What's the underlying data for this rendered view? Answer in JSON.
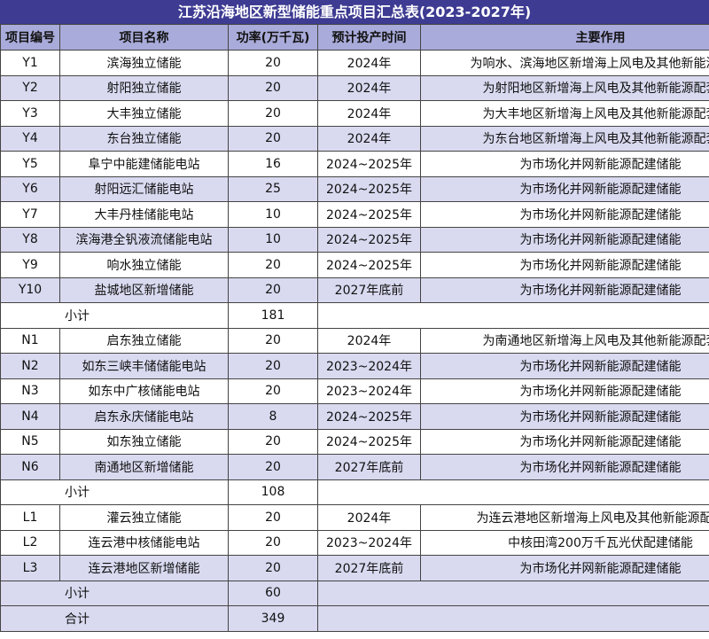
{
  "title": "江苏沿海地区新型储能重点项目汇总表(2023-2027年)",
  "table": {
    "headers": [
      "项目编号",
      "项目名称",
      "功率(万千瓦)",
      "预计投产时间",
      "主要作用"
    ],
    "rows": [
      [
        "Y1",
        "滨海独立储能",
        20,
        "2024年",
        "为响水、滨海地区新增海上风电及其他新能源配"
      ],
      [
        "Y2",
        "射阳独立储能",
        20,
        "2024年",
        "为射阳地区新增海上风电及其他新能源配套"
      ],
      [
        "Y3",
        "大丰独立储能",
        20,
        "2024年",
        "为大丰地区新增海上风电及其他新能源配套"
      ],
      [
        "Y4",
        "东台独立储能",
        20,
        "2024年",
        "为东台地区新增海上风电及其他新能源配套"
      ],
      [
        "Y5",
        "阜宁中能建储能电站",
        16,
        "2024~2025年",
        "为市场化并网新能源配建储能"
      ],
      [
        "Y6",
        "射阳远汇储能电站",
        25,
        "2024~2025年",
        "为市场化并网新能源配建储能"
      ],
      [
        "Y7",
        "大丰丹桂储能电站",
        10,
        "2024~2025年",
        "为市场化并网新能源配建储能"
      ],
      [
        "Y8",
        "滨海港全钒液流储能电站",
        10,
        "2024~2025年",
        "为市场化并网新能源配建储能"
      ],
      [
        "Y9",
        "响水独立储能",
        20,
        "2024~2025年",
        "为市场化并网新能源配建储能"
      ],
      [
        "Y10",
        "盐城地区新增储能",
        20,
        "2027年底前",
        "为市场化并网新能源配建储能"
      ],
      [
        "小计",
        181
      ],
      [
        "N1",
        "启东独立储能",
        20,
        "2024年",
        "为南通地区新增海上风电及其他新能源配套"
      ],
      [
        "N2",
        "如东三峡丰储储能电站",
        20,
        "2023~2024年",
        "为市场化并网新能源配建储能"
      ],
      [
        "N3",
        "如东中广核储能电站",
        20,
        "2023~2024年",
        "为市场化并网新能源配建储能"
      ],
      [
        "N4",
        "启东永庆储能电站",
        8,
        "2024~2025年",
        "为市场化并网新能源配建储能"
      ],
      [
        "N5",
        "如东独立储能",
        20,
        "2024~2025年",
        "为市场化并网新能源配建储能"
      ],
      [
        "N6",
        "南通地区新增储能",
        20,
        "2027年底前",
        "为市场化并网新能源配建储能"
      ],
      [
        "小计",
        108
      ],
      [
        "L1",
        "灌云独立储能",
        20,
        "2024年",
        "为连云港地区新增海上风电及其他新能源配套"
      ],
      [
        "L2",
        "连云港中核储能电站",
        20,
        "2023~2024年",
        "中核田湾200万千瓦光伏配建储能"
      ],
      [
        "L3",
        "连云港地区新增储能",
        20,
        "2027年底前",
        "为市场化并网新能源配建储能"
      ],
      [
        "小计",
        60
      ],
      [
        "合计",
        349
      ]
    ]
  }
}
